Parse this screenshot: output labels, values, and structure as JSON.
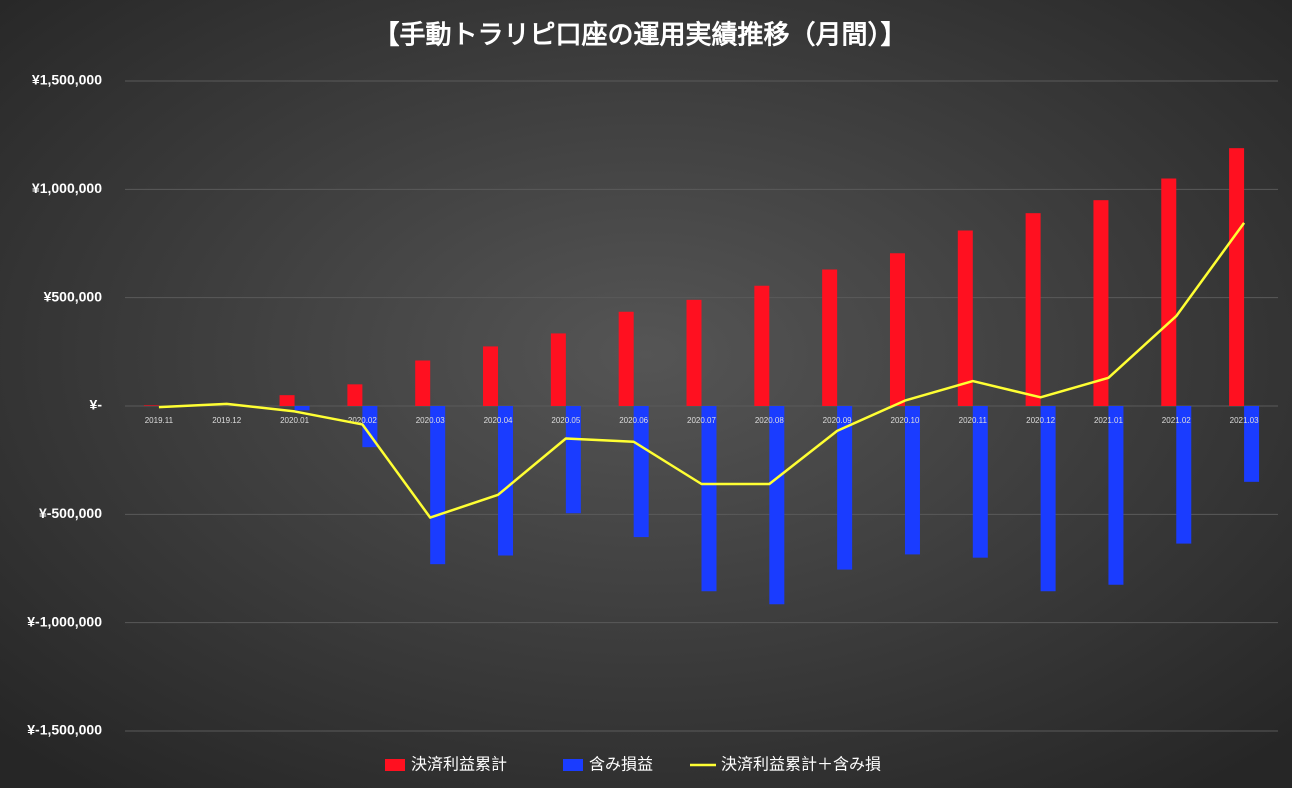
{
  "chart_data": {
    "type": "bar",
    "title": "【手動トラリピ口座の運用実績推移（月間）】",
    "categories": [
      "2019.11",
      "2019.12",
      "2020.01",
      "2020.02",
      "2020.03",
      "2020.04",
      "2020.05",
      "2020.06",
      "2020.07",
      "2020.08",
      "2020.09",
      "2020.10",
      "2020.11",
      "2020.12",
      "2021.01",
      "2021.02",
      "2021.03"
    ],
    "series": [
      {
        "name": "決済利益累計",
        "color": "#ff1020",
        "values": [
          3000,
          0,
          50000,
          100000,
          210000,
          275000,
          335000,
          435000,
          490000,
          555000,
          630000,
          705000,
          810000,
          890000,
          950000,
          1050000,
          1190000
        ]
      },
      {
        "name": "含み損益",
        "color": "#1a3cff",
        "values": [
          0,
          0,
          -20000,
          -190000,
          -730000,
          -690000,
          -495000,
          -605000,
          -855000,
          -915000,
          -755000,
          -685000,
          -700000,
          -855000,
          -825000,
          -635000,
          -350000
        ]
      },
      {
        "name": "決済利益累計＋含み損",
        "color": "#ffff33",
        "type": "line",
        "values": [
          -5000,
          10000,
          -25000,
          -85000,
          -515000,
          -410000,
          -150000,
          -165000,
          -360000,
          -360000,
          -115000,
          25000,
          115000,
          40000,
          130000,
          415000,
          845000
        ]
      }
    ],
    "ylim": [
      -1500000,
      1500000
    ],
    "yticks": [
      {
        "value": -1500000,
        "label": "¥-1,500,000"
      },
      {
        "value": -1000000,
        "label": "¥-1,000,000"
      },
      {
        "value": -500000,
        "label": "¥-500,000"
      },
      {
        "value": 0,
        "label": "¥-"
      },
      {
        "value": 500000,
        "label": "¥500,000"
      },
      {
        "value": 1000000,
        "label": "¥1,000,000"
      },
      {
        "value": 1500000,
        "label": "¥1,500,000"
      }
    ],
    "grid": true,
    "legend": "bottom"
  }
}
